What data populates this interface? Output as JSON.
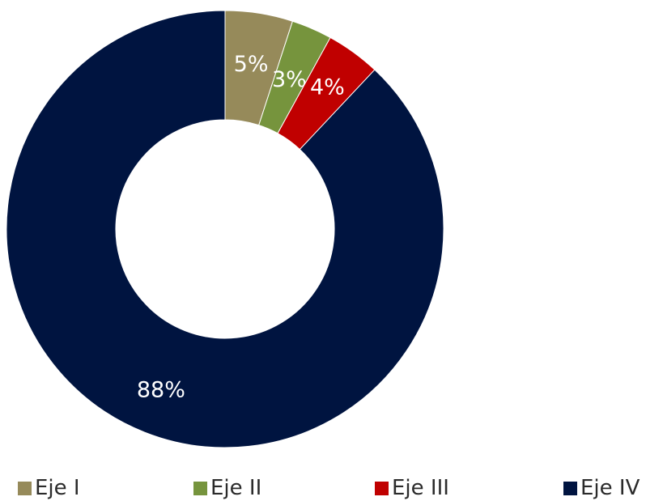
{
  "chart_data": {
    "type": "pie",
    "donut": true,
    "categories": [
      "Eje I",
      "Eje II",
      "Eje III",
      "Eje IV"
    ],
    "values": [
      5,
      3,
      4,
      88
    ],
    "data_labels": [
      "5%",
      "3%",
      "4%",
      "88%"
    ],
    "colors": [
      "#968A5A",
      "#76943D",
      "#C00000",
      "#001440"
    ],
    "legend_position": "bottom",
    "start_angle_deg": 0,
    "direction": "clockwise"
  },
  "legend": {
    "items": [
      {
        "label": "Eje I",
        "color": "#968A5A"
      },
      {
        "label": "Eje II",
        "color": "#76943D"
      },
      {
        "label": "Eje III",
        "color": "#C00000"
      },
      {
        "label": "Eje IV",
        "color": "#001440"
      }
    ]
  }
}
